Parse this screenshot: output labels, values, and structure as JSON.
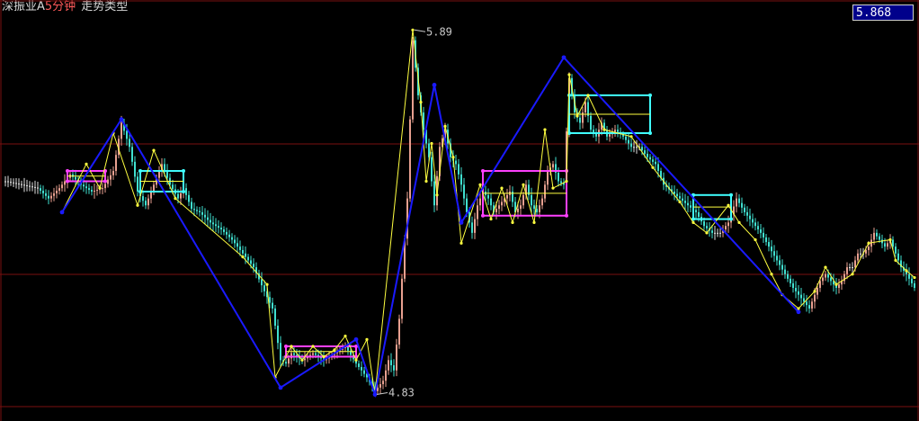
{
  "header": {
    "symbol": "深振业A",
    "period": "5分钟",
    "indicator": "走势类型",
    "current_price": "5.868"
  },
  "colors": {
    "background": "#000000",
    "grid": "#7a1010",
    "bar_up": "#e8a090",
    "bar_down": "#40e0d0",
    "bar_neutral": "#e0e0e0",
    "stroke_yellow": "#ffff40",
    "segment_blue": "#1a1aff",
    "zone_magenta": "#ff40ff",
    "zone_cyan": "#40ffff"
  },
  "chart_data": {
    "type": "line",
    "title": "深振业A 5分钟 走势类型",
    "ylim": [
      4.8,
      5.93
    ],
    "grid": true,
    "price_markers": [
      {
        "label": "5.89",
        "x": 151,
        "y": 5.89
      },
      {
        "label": "4.83",
        "x": 137,
        "y": 4.83
      }
    ],
    "series": [
      {
        "role": "close",
        "points": [
          [
            0,
            5.45
          ],
          [
            6,
            5.44
          ],
          [
            12,
            5.43
          ],
          [
            16,
            5.4
          ],
          [
            20,
            5.43
          ],
          [
            24,
            5.47
          ],
          [
            28,
            5.44
          ],
          [
            32,
            5.42
          ],
          [
            36,
            5.43
          ],
          [
            40,
            5.48
          ],
          [
            43,
            5.62
          ],
          [
            46,
            5.55
          ],
          [
            49,
            5.42
          ],
          [
            52,
            5.38
          ],
          [
            55,
            5.44
          ],
          [
            58,
            5.5
          ],
          [
            61,
            5.44
          ],
          [
            64,
            5.4
          ],
          [
            66,
            5.43
          ],
          [
            69,
            5.37
          ],
          [
            72,
            5.36
          ],
          [
            76,
            5.33
          ],
          [
            80,
            5.31
          ],
          [
            84,
            5.28
          ],
          [
            88,
            5.24
          ],
          [
            92,
            5.2
          ],
          [
            96,
            5.13
          ],
          [
            99,
            5.08
          ],
          [
            102,
            4.93
          ],
          [
            104,
            4.92
          ],
          [
            106,
            4.95
          ],
          [
            110,
            4.93
          ],
          [
            114,
            4.95
          ],
          [
            118,
            4.93
          ],
          [
            122,
            4.95
          ],
          [
            126,
            4.97
          ],
          [
            130,
            4.92
          ],
          [
            134,
            4.88
          ],
          [
            137,
            4.84
          ],
          [
            140,
            4.87
          ],
          [
            142,
            4.93
          ],
          [
            144,
            4.9
          ],
          [
            146,
            5.05
          ],
          [
            149,
            5.4
          ],
          [
            151,
            5.86
          ],
          [
            153,
            5.7
          ],
          [
            155,
            5.6
          ],
          [
            157,
            5.52
          ],
          [
            159,
            5.38
          ],
          [
            161,
            5.55
          ],
          [
            163,
            5.6
          ],
          [
            165,
            5.52
          ],
          [
            167,
            5.5
          ],
          [
            169,
            5.44
          ],
          [
            171,
            5.36
          ],
          [
            173,
            5.3
          ],
          [
            175,
            5.38
          ],
          [
            177,
            5.42
          ],
          [
            179,
            5.4
          ],
          [
            181,
            5.36
          ],
          [
            183,
            5.38
          ],
          [
            185,
            5.4
          ],
          [
            187,
            5.42
          ],
          [
            189,
            5.36
          ],
          [
            191,
            5.38
          ],
          [
            193,
            5.44
          ],
          [
            195,
            5.38
          ],
          [
            197,
            5.36
          ],
          [
            199,
            5.4
          ],
          [
            201,
            5.48
          ],
          [
            203,
            5.5
          ],
          [
            205,
            5.45
          ],
          [
            207,
            5.44
          ],
          [
            209,
            5.75
          ],
          [
            211,
            5.65
          ],
          [
            213,
            5.62
          ],
          [
            215,
            5.68
          ],
          [
            217,
            5.6
          ],
          [
            219,
            5.58
          ],
          [
            221,
            5.62
          ],
          [
            223,
            5.58
          ],
          [
            226,
            5.6
          ],
          [
            229,
            5.58
          ],
          [
            232,
            5.55
          ],
          [
            235,
            5.55
          ],
          [
            238,
            5.52
          ],
          [
            241,
            5.5
          ],
          [
            244,
            5.44
          ],
          [
            247,
            5.42
          ],
          [
            250,
            5.4
          ],
          [
            253,
            5.38
          ],
          [
            256,
            5.36
          ],
          [
            259,
            5.32
          ],
          [
            262,
            5.3
          ],
          [
            265,
            5.3
          ],
          [
            268,
            5.33
          ],
          [
            271,
            5.4
          ],
          [
            274,
            5.36
          ],
          [
            277,
            5.33
          ],
          [
            280,
            5.3
          ],
          [
            283,
            5.26
          ],
          [
            286,
            5.22
          ],
          [
            289,
            5.18
          ],
          [
            292,
            5.14
          ],
          [
            294,
            5.12
          ],
          [
            296,
            5.1
          ],
          [
            298,
            5.08
          ],
          [
            300,
            5.12
          ],
          [
            302,
            5.16
          ],
          [
            304,
            5.18
          ],
          [
            306,
            5.16
          ],
          [
            308,
            5.14
          ],
          [
            310,
            5.16
          ],
          [
            312,
            5.2
          ],
          [
            314,
            5.2
          ],
          [
            316,
            5.24
          ],
          [
            318,
            5.24
          ],
          [
            320,
            5.26
          ],
          [
            322,
            5.3
          ],
          [
            324,
            5.28
          ],
          [
            326,
            5.26
          ],
          [
            328,
            5.28
          ],
          [
            330,
            5.24
          ],
          [
            332,
            5.2
          ],
          [
            334,
            5.18
          ],
          [
            337,
            5.14
          ]
        ]
      },
      {
        "role": "stroke",
        "points": [
          [
            21,
            5.36
          ],
          [
            30,
            5.5
          ],
          [
            35,
            5.43
          ],
          [
            40,
            5.59
          ],
          [
            49,
            5.38
          ],
          [
            55,
            5.54
          ],
          [
            63,
            5.4
          ],
          [
            88,
            5.23
          ],
          [
            97,
            5.15
          ],
          [
            100,
            4.88
          ],
          [
            106,
            4.97
          ],
          [
            110,
            4.93
          ],
          [
            114,
            4.97
          ],
          [
            118,
            4.94
          ],
          [
            122,
            4.96
          ],
          [
            126,
            5.0
          ],
          [
            130,
            4.93
          ],
          [
            134,
            4.99
          ],
          [
            137,
            4.83
          ],
          [
            151,
            5.89
          ],
          [
            154,
            5.68
          ],
          [
            156,
            5.45
          ],
          [
            158,
            5.56
          ],
          [
            160,
            5.41
          ],
          [
            163,
            5.61
          ],
          [
            166,
            5.52
          ],
          [
            169,
            5.27
          ],
          [
            176,
            5.44
          ],
          [
            180,
            5.34
          ],
          [
            184,
            5.43
          ],
          [
            188,
            5.33
          ],
          [
            192,
            5.44
          ],
          [
            196,
            5.33
          ],
          [
            200,
            5.6
          ],
          [
            203,
            5.43
          ],
          [
            208,
            5.45
          ],
          [
            209,
            5.76
          ],
          [
            212,
            5.64
          ],
          [
            216,
            5.7
          ],
          [
            222,
            5.6
          ],
          [
            232,
            5.58
          ],
          [
            240,
            5.49
          ],
          [
            250,
            5.39
          ],
          [
            255,
            5.33
          ],
          [
            260,
            5.3
          ],
          [
            268,
            5.38
          ],
          [
            272,
            5.33
          ],
          [
            278,
            5.28
          ],
          [
            284,
            5.18
          ],
          [
            288,
            5.12
          ],
          [
            294,
            5.08
          ],
          [
            300,
            5.13
          ],
          [
            304,
            5.2
          ],
          [
            308,
            5.15
          ],
          [
            314,
            5.18
          ],
          [
            320,
            5.27
          ],
          [
            328,
            5.28
          ],
          [
            330,
            5.22
          ],
          [
            334,
            5.19
          ],
          [
            337,
            5.17
          ]
        ]
      },
      {
        "role": "segment",
        "points": [
          [
            21,
            5.36
          ],
          [
            43,
            5.63
          ],
          [
            102,
            4.85
          ],
          [
            130,
            4.99
          ],
          [
            137,
            4.83
          ],
          [
            159,
            5.73
          ],
          [
            169,
            5.33
          ],
          [
            207,
            5.81
          ],
          [
            294,
            5.07
          ]
        ]
      }
    ],
    "zones": [
      {
        "color": "magenta",
        "x1": 23,
        "x2": 37,
        "y_top": 5.48,
        "y_bot": 5.45,
        "mid": 5.465
      },
      {
        "color": "cyan",
        "x1": 50,
        "x2": 66,
        "y_top": 5.48,
        "y_bot": 5.42,
        "mid": 5.45
      },
      {
        "color": "magenta",
        "x1": 104,
        "x2": 130,
        "y_top": 4.97,
        "y_bot": 4.94,
        "mid": 4.955
      },
      {
        "color": "magenta",
        "x1": 177,
        "x2": 208,
        "y_top": 5.48,
        "y_bot": 5.35,
        "mid": 5.415
      },
      {
        "color": "cyan",
        "x1": 209,
        "x2": 239,
        "y_top": 5.7,
        "y_bot": 5.59,
        "mid": 5.645
      },
      {
        "color": "cyan",
        "x1": 255,
        "x2": 269,
        "y_top": 5.41,
        "y_bot": 5.34,
        "mid": 5.375
      }
    ]
  }
}
